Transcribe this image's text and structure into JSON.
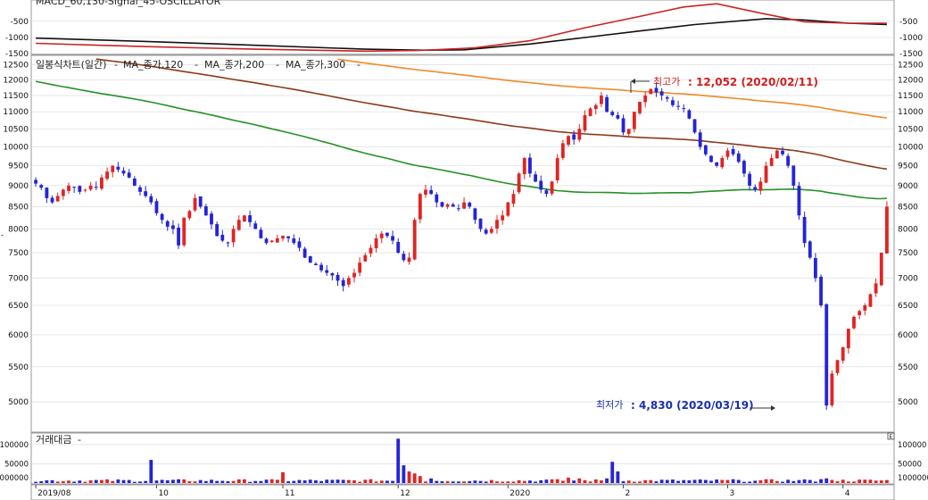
{
  "chart_data": [
    {
      "type": "line",
      "panel": "macd",
      "title": "MACD_60,130-Signal_45-OSCILLATOR",
      "yticks": [
        -500,
        -1000,
        -1500
      ],
      "ylim": [
        -1550,
        100
      ],
      "series": [
        {
          "name": "MACD",
          "color": "#111111",
          "points": [
            [
              0,
              -1020
            ],
            [
              20,
              -1120
            ],
            [
              40,
              -1240
            ],
            [
              60,
              -1360
            ],
            [
              70,
              -1390
            ],
            [
              78,
              -1380
            ],
            [
              90,
              -1200
            ],
            [
              100,
              -1000
            ],
            [
              110,
              -800
            ],
            [
              120,
              -600
            ],
            [
              133,
              -420
            ],
            [
              140,
              -460
            ],
            [
              148,
              -560
            ],
            [
              155,
              -600
            ]
          ]
        },
        {
          "name": "Signal",
          "color": "#cc2222",
          "points": [
            [
              0,
              -1180
            ],
            [
              20,
              -1280
            ],
            [
              40,
              -1360
            ],
            [
              60,
              -1420
            ],
            [
              70,
              -1400
            ],
            [
              80,
              -1320
            ],
            [
              90,
              -1100
            ],
            [
              100,
              -700
            ],
            [
              110,
              -350
            ],
            [
              118,
              -60
            ],
            [
              124,
              40
            ],
            [
              132,
              -250
            ],
            [
              140,
              -520
            ],
            [
              148,
              -560
            ],
            [
              155,
              -560
            ]
          ]
        }
      ]
    },
    {
      "type": "candlestick",
      "panel": "price",
      "title": "일봉식차트(일간)",
      "legend": [
        "MA_종가,120",
        "MA_종가,200",
        "MA_종가,300"
      ],
      "legend_colors": [
        "#239123",
        "#8b3a1a",
        "#f08a2c"
      ],
      "yticks": [
        5000,
        5500,
        6000,
        6500,
        7000,
        7500,
        8000,
        8500,
        9000,
        9500,
        10000,
        10500,
        11000,
        11500,
        12000,
        12500
      ],
      "ylim": [
        4650,
        12700
      ],
      "scale": "log",
      "x_labels": [
        {
          "label": "2019/08",
          "i": 0
        },
        {
          "label": "10",
          "i": 22
        },
        {
          "label": "11",
          "i": 45
        },
        {
          "label": "12",
          "i": 66
        },
        {
          "label": "2020",
          "i": 86
        },
        {
          "label": "2",
          "i": 107
        },
        {
          "label": "3",
          "i": 126
        },
        {
          "label": "4",
          "i": 147
        }
      ],
      "n_days": 156,
      "closes": [
        9050,
        8950,
        8700,
        8600,
        8750,
        8900,
        9000,
        8950,
        8850,
        8900,
        9000,
        8950,
        9200,
        9350,
        9500,
        9400,
        9300,
        9200,
        9000,
        8850,
        8750,
        8600,
        8350,
        8200,
        8050,
        8000,
        7650,
        8250,
        8400,
        8700,
        8500,
        8300,
        8100,
        7850,
        7750,
        7700,
        8000,
        8200,
        8300,
        8150,
        8000,
        7800,
        7700,
        7750,
        7800,
        7850,
        7800,
        7700,
        7600,
        7400,
        7300,
        7250,
        7150,
        7100,
        7050,
        6950,
        6850,
        7000,
        7100,
        7300,
        7450,
        7600,
        7800,
        7900,
        7850,
        7750,
        7500,
        7350,
        7400,
        8200,
        8800,
        8900,
        8800,
        8600,
        8500,
        8550,
        8500,
        8450,
        8600,
        8500,
        8200,
        8000,
        7900,
        8000,
        8200,
        8300,
        8600,
        8800,
        9300,
        9700,
        9300,
        9100,
        8900,
        8800,
        9100,
        9700,
        10100,
        10300,
        10200,
        10500,
        10900,
        11100,
        11200,
        11500,
        11000,
        10900,
        10800,
        10400,
        10500,
        11000,
        11300,
        11500,
        11700,
        11600,
        11500,
        11400,
        11200,
        11150,
        11100,
        10800,
        10400,
        10000,
        9800,
        9600,
        9500,
        9700,
        9900,
        9800,
        9600,
        9300,
        9000,
        8900,
        9100,
        9500,
        9700,
        9900,
        9800,
        9500,
        9000,
        8300,
        7700,
        7400,
        7000,
        6500,
        4950,
        5400,
        5600,
        5800,
        6100,
        6300,
        6400,
        6500,
        6700,
        6900,
        7500,
        8500
      ]
    },
    {
      "type": "bar",
      "panel": "volume",
      "title": "거래대금",
      "yticks": [
        100000,
        50000
      ],
      "floor_label": "1000000",
      "ylim": [
        0,
        118000
      ]
    }
  ],
  "annotations": {
    "max_label": "최고가",
    "max_value": ": 12,052 (2020/02/11)",
    "min_label": "최저가",
    "min_value": ": 4,830 (2020/03/19)"
  },
  "colors": {
    "up": "#e02424",
    "down": "#2424d6",
    "grid": "#d8d8d8",
    "axis": "#888888"
  }
}
